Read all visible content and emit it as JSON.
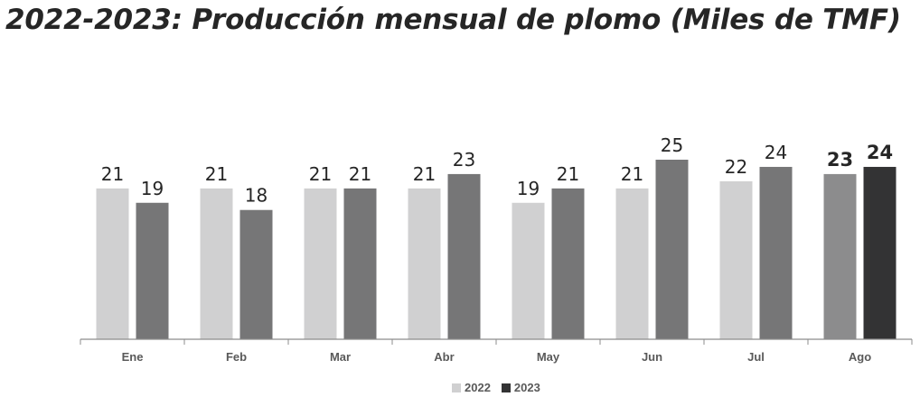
{
  "title": "2022-2023: Producción mensual de plomo (Miles de TMF)",
  "colors": {
    "series_2022": "#d0d0d1",
    "series_2023": "#767677",
    "series_2022_highlight": "#8c8c8d",
    "series_2023_highlight": "#333334",
    "axis": "#8c8c8c",
    "label_text": "#262626",
    "tick_text": "#595959"
  },
  "legend": {
    "items": [
      {
        "label": "2022",
        "color": "#d0d0d1"
      },
      {
        "label": "2023",
        "color": "#333334"
      }
    ]
  },
  "chart_data": {
    "type": "bar",
    "title": "2022-2023: Producción mensual de plomo (Miles de TMF)",
    "xlabel": "",
    "ylabel": "",
    "categories": [
      "Ene",
      "Feb",
      "Mar",
      "Abr",
      "May",
      "Jun",
      "Jul",
      "Ago"
    ],
    "series": [
      {
        "name": "2022",
        "values": [
          21,
          21,
          21,
          21,
          19,
          21,
          22,
          23
        ]
      },
      {
        "name": "2023",
        "values": [
          19,
          18,
          21,
          23,
          21,
          25,
          24,
          24
        ]
      }
    ],
    "highlight_category": "Ago",
    "ylim": [
      0,
      25
    ],
    "grid": false,
    "legend_position": "bottom"
  }
}
